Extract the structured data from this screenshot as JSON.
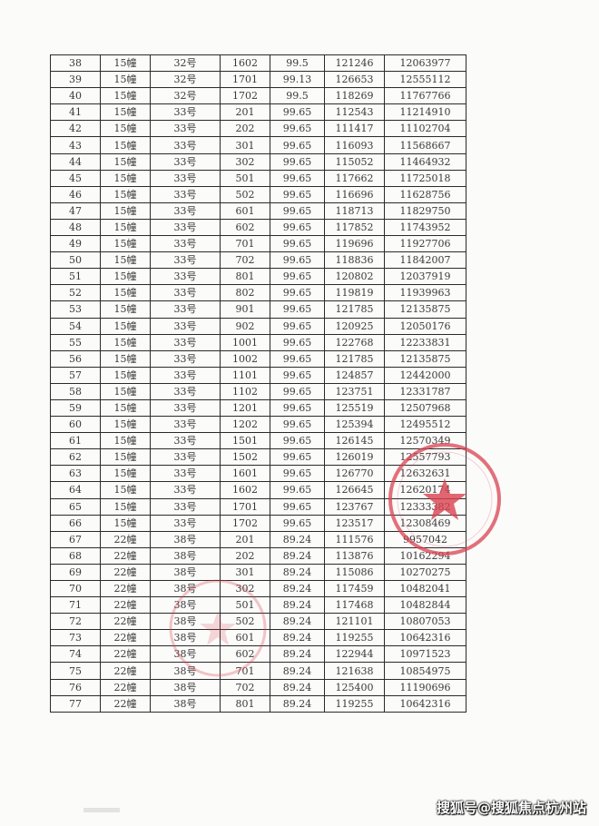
{
  "table": {
    "rows": [
      [
        "38",
        "15幢",
        "32号",
        "1602",
        "99.5",
        "121246",
        "12063977"
      ],
      [
        "39",
        "15幢",
        "32号",
        "1701",
        "99.13",
        "126653",
        "12555112"
      ],
      [
        "40",
        "15幢",
        "32号",
        "1702",
        "99.5",
        "118269",
        "11767766"
      ],
      [
        "41",
        "15幢",
        "33号",
        "201",
        "99.65",
        "112543",
        "11214910"
      ],
      [
        "42",
        "15幢",
        "33号",
        "202",
        "99.65",
        "111417",
        "11102704"
      ],
      [
        "43",
        "15幢",
        "33号",
        "301",
        "99.65",
        "116093",
        "11568667"
      ],
      [
        "44",
        "15幢",
        "33号",
        "302",
        "99.65",
        "115052",
        "11464932"
      ],
      [
        "45",
        "15幢",
        "33号",
        "501",
        "99.65",
        "117662",
        "11725018"
      ],
      [
        "46",
        "15幢",
        "33号",
        "502",
        "99.65",
        "116696",
        "11628756"
      ],
      [
        "47",
        "15幢",
        "33号",
        "601",
        "99.65",
        "118713",
        "11829750"
      ],
      [
        "48",
        "15幢",
        "33号",
        "602",
        "99.65",
        "117852",
        "11743952"
      ],
      [
        "49",
        "15幢",
        "33号",
        "701",
        "99.65",
        "119696",
        "11927706"
      ],
      [
        "50",
        "15幢",
        "33号",
        "702",
        "99.65",
        "118836",
        "11842007"
      ],
      [
        "51",
        "15幢",
        "33号",
        "801",
        "99.65",
        "120802",
        "12037919"
      ],
      [
        "52",
        "15幢",
        "33号",
        "802",
        "99.65",
        "119819",
        "11939963"
      ],
      [
        "53",
        "15幢",
        "33号",
        "901",
        "99.65",
        "121785",
        "12135875"
      ],
      [
        "54",
        "15幢",
        "33号",
        "902",
        "99.65",
        "120925",
        "12050176"
      ],
      [
        "55",
        "15幢",
        "33号",
        "1001",
        "99.65",
        "122768",
        "12233831"
      ],
      [
        "56",
        "15幢",
        "33号",
        "1002",
        "99.65",
        "121785",
        "12135875"
      ],
      [
        "57",
        "15幢",
        "33号",
        "1101",
        "99.65",
        "124857",
        "12442000"
      ],
      [
        "58",
        "15幢",
        "33号",
        "1102",
        "99.65",
        "123751",
        "12331787"
      ],
      [
        "59",
        "15幢",
        "33号",
        "1201",
        "99.65",
        "125519",
        "12507968"
      ],
      [
        "60",
        "15幢",
        "33号",
        "1202",
        "99.65",
        "125394",
        "12495512"
      ],
      [
        "61",
        "15幢",
        "33号",
        "1501",
        "99.65",
        "126145",
        "12570349"
      ],
      [
        "62",
        "15幢",
        "33号",
        "1502",
        "99.65",
        "126019",
        "12557793"
      ],
      [
        "63",
        "15幢",
        "33号",
        "1601",
        "99.65",
        "126770",
        "12632631"
      ],
      [
        "64",
        "15幢",
        "33号",
        "1602",
        "99.65",
        "126645",
        "12620174"
      ],
      [
        "65",
        "15幢",
        "33号",
        "1701",
        "99.65",
        "123767",
        "12333382"
      ],
      [
        "66",
        "15幢",
        "33号",
        "1702",
        "99.65",
        "123517",
        "12308469"
      ],
      [
        "67",
        "22幢",
        "38号",
        "201",
        "89.24",
        "111576",
        "9957042"
      ],
      [
        "68",
        "22幢",
        "38号",
        "202",
        "89.24",
        "113876",
        "10162294"
      ],
      [
        "69",
        "22幢",
        "38号",
        "301",
        "89.24",
        "115086",
        "10270275"
      ],
      [
        "70",
        "22幢",
        "38号",
        "302",
        "89.24",
        "117459",
        "10482041"
      ],
      [
        "71",
        "22幢",
        "38号",
        "501",
        "89.24",
        "117468",
        "10482844"
      ],
      [
        "72",
        "22幢",
        "38号",
        "502",
        "89.24",
        "121101",
        "10807053"
      ],
      [
        "73",
        "22幢",
        "38号",
        "601",
        "89.24",
        "119255",
        "10642316"
      ],
      [
        "74",
        "22幢",
        "38号",
        "602",
        "89.24",
        "122944",
        "10971523"
      ],
      [
        "75",
        "22幢",
        "38号",
        "701",
        "89.24",
        "121638",
        "10854975"
      ],
      [
        "76",
        "22幢",
        "38号",
        "702",
        "89.24",
        "125400",
        "11190696"
      ],
      [
        "77",
        "22幢",
        "38号",
        "801",
        "89.24",
        "119255",
        "10642316"
      ]
    ]
  },
  "watermark": "搜狐号@搜狐焦点杭州站",
  "colors": {
    "stamp": "#d9424f",
    "grid": "#2a2a2a",
    "text": "#3a3a3a"
  }
}
